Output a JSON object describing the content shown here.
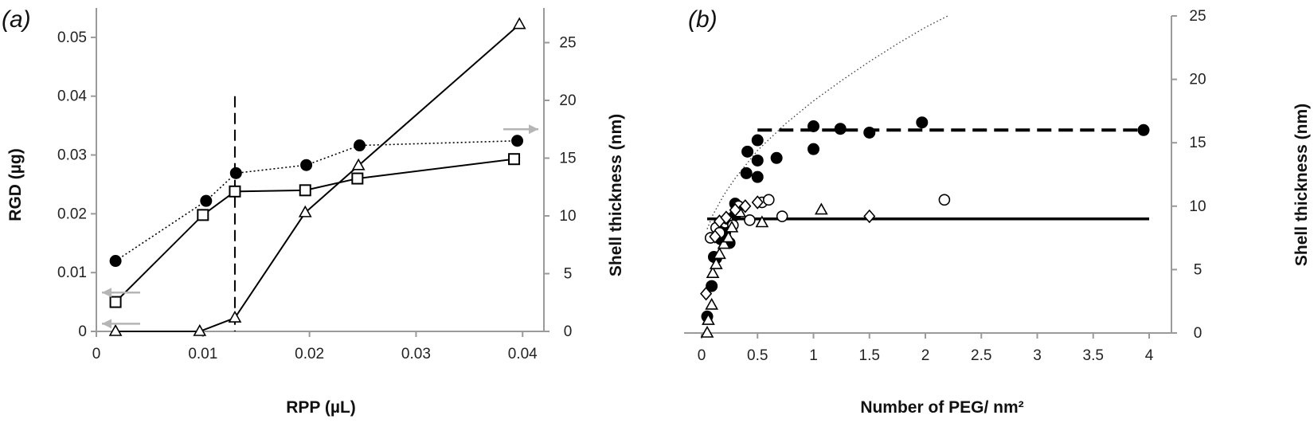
{
  "chart_data": [
    {
      "type": "line",
      "panel_label": "(a)",
      "xlabel": "RPP (µL)",
      "ylabel": "RGD (µg)",
      "y2label": "Shell thickness (nm)",
      "xlim": [
        0,
        0.042
      ],
      "ylim": [
        0,
        0.055
      ],
      "y2lim": [
        0,
        28
      ],
      "xticks": [
        0,
        0.01,
        0.02,
        0.03,
        0.04
      ],
      "xtick_labels": [
        "0",
        "0.01",
        "0.02",
        "0.03",
        "0.04"
      ],
      "yticks": [
        0,
        0.01,
        0.02,
        0.03,
        0.04,
        0.05
      ],
      "ytick_labels": [
        "0",
        "0.01",
        "0.02",
        "0.03",
        "0.04",
        "0.05"
      ],
      "y2ticks": [
        0,
        5,
        10,
        15,
        20,
        25
      ],
      "y2tick_labels": [
        "0",
        "5",
        "10",
        "15",
        "20",
        "25"
      ],
      "grid": false,
      "series": [
        {
          "marker": "circle-filled",
          "line": "dotted",
          "axis": "right",
          "x": [
            0.0018,
            0.0103,
            0.0131,
            0.0197,
            0.0247,
            0.0395
          ],
          "y": [
            6.1,
            11.3,
            13.7,
            14.4,
            16.1,
            16.5
          ]
        },
        {
          "marker": "square-open",
          "line": "solid",
          "axis": "left",
          "x": [
            0.0018,
            0.01,
            0.013,
            0.0196,
            0.0245,
            0.0392
          ],
          "y": [
            0.005,
            0.0198,
            0.0238,
            0.024,
            0.026,
            0.0293
          ]
        },
        {
          "marker": "triangle-open",
          "line": "solid",
          "axis": "left",
          "x": [
            0.0018,
            0.0097,
            0.013,
            0.0196,
            0.0246,
            0.0397
          ],
          "y": [
            0,
            0,
            0.0023,
            0.0202,
            0.0282,
            0.0522
          ]
        }
      ],
      "annotations": {
        "vertical_dashed_line_x": 0.013,
        "vertical_dashed_line_top_y": 0.04,
        "arrows": [
          {
            "direction": "left",
            "axis": "left",
            "y": 0.0066
          },
          {
            "direction": "left",
            "axis": "left",
            "y": 0.0013
          },
          {
            "direction": "right",
            "axis": "right",
            "y": 17.5
          }
        ]
      }
    },
    {
      "type": "scatter",
      "panel_label": "(b)",
      "xlabel": "Number of PEG/ nm²",
      "y2label": "Shell thickness (nm)",
      "xlim": [
        -0.2,
        4.2
      ],
      "y2lim": [
        0,
        25
      ],
      "xticks": [
        0,
        0.5,
        1,
        1.5,
        2,
        2.5,
        3,
        3.5,
        4
      ],
      "xtick_labels": [
        "0",
        "0.5",
        "1",
        "1.5",
        "2",
        "2.5",
        "3",
        "3.5",
        "4"
      ],
      "y2ticks": [
        0,
        5,
        10,
        15,
        20,
        25
      ],
      "y2tick_labels": [
        "0",
        "5",
        "10",
        "15",
        "20",
        "25"
      ],
      "grid": false,
      "series": [
        {
          "marker": "circle-filled",
          "x": [
            0.05,
            0.09,
            0.11,
            0.13,
            0.17,
            0.21,
            0.23,
            0.25,
            0.3,
            0.3,
            0.4,
            0.41,
            0.5,
            0.5,
            0.5,
            0.67,
            1.0,
            1.0,
            1.24,
            1.5,
            1.97,
            3.95
          ],
          "y": [
            1.3,
            3.7,
            6.0,
            5.9,
            7.4,
            7.9,
            9.0,
            7.1,
            9.3,
            10.2,
            12.6,
            14.3,
            12.3,
            13.6,
            15.2,
            13.8,
            14.5,
            16.3,
            16.1,
            15.8,
            16.6,
            16.0
          ]
        },
        {
          "marker": "circle-open",
          "x": [
            0.08,
            0.13,
            0.16,
            0.21,
            0.23,
            0.28,
            0.33,
            0.43,
            0.54,
            0.6,
            0.72,
            2.17
          ],
          "y": [
            7.5,
            8.3,
            7.9,
            8.7,
            9.0,
            8.5,
            10.0,
            8.9,
            10.3,
            10.5,
            9.2,
            10.5
          ]
        },
        {
          "marker": "triangle-open",
          "x": [
            0.05,
            0.06,
            0.09,
            0.1,
            0.13,
            0.16,
            0.2,
            0.24,
            0.27,
            0.34,
            0.54,
            1.07
          ],
          "y": [
            0.0,
            1.0,
            2.2,
            4.7,
            5.4,
            6.2,
            7.0,
            7.5,
            8.3,
            9.5,
            8.7,
            9.7
          ]
        },
        {
          "marker": "diamond-open",
          "x": [
            0.04,
            0.12,
            0.16,
            0.22,
            0.3,
            0.39,
            0.5,
            1.5
          ],
          "y": [
            3.1,
            7.6,
            8.8,
            9.1,
            9.7,
            10.0,
            10.3,
            9.2
          ]
        }
      ],
      "lines": [
        {
          "style": "dotted",
          "kind": "sqrt-fit",
          "x": [
            0.05,
            0.1,
            0.2,
            0.3,
            0.5,
            0.75,
            1.0,
            1.25,
            1.5,
            1.75,
            2.0,
            2.2
          ],
          "y": [
            8.2,
            9.3,
            10.9,
            12.2,
            14.4,
            16.5,
            18.3,
            19.9,
            21.4,
            22.8,
            24.1,
            25.0
          ]
        },
        {
          "style": "dashed-bold",
          "x": [
            0.5,
            4.0
          ],
          "y": [
            16.0,
            16.0
          ]
        },
        {
          "style": "solid-bold",
          "x": [
            0.05,
            4.0
          ],
          "y": [
            9.0,
            9.0
          ]
        }
      ]
    }
  ]
}
